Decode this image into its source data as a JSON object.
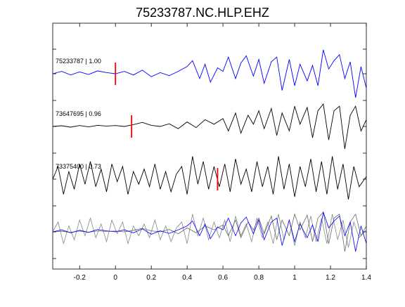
{
  "chart_data": {
    "type": "line",
    "title": "75233787.NC.HLP.EHZ",
    "xlabel": "",
    "ylabel": "",
    "xlim": [
      -0.35,
      1.4
    ],
    "x_ticks": [
      "-0.2",
      "0",
      "0.2",
      "0.4",
      "0.6",
      "0.8",
      "1",
      "1.2",
      "1.4"
    ],
    "grid": false,
    "traces": [
      {
        "label": "75233787 | 1.00",
        "color": "#0000ff",
        "pick_time": 0.0,
        "pick_color": "#ff0000",
        "points": [
          [
            -0.35,
            0.0
          ],
          [
            -0.3,
            0.1
          ],
          [
            -0.25,
            -0.05
          ],
          [
            -0.2,
            0.08
          ],
          [
            -0.15,
            -0.03
          ],
          [
            -0.1,
            0.12
          ],
          [
            -0.05,
            0.05
          ],
          [
            0.0,
            0.0
          ],
          [
            0.05,
            0.1
          ],
          [
            0.1,
            -0.05
          ],
          [
            0.15,
            0.15
          ],
          [
            0.2,
            -0.12
          ],
          [
            0.25,
            0.05
          ],
          [
            0.3,
            -0.08
          ],
          [
            0.35,
            0.1
          ],
          [
            0.4,
            0.3
          ],
          [
            0.43,
            0.55
          ],
          [
            0.47,
            -0.2
          ],
          [
            0.5,
            0.4
          ],
          [
            0.53,
            -0.35
          ],
          [
            0.57,
            0.25
          ],
          [
            0.6,
            0.1
          ],
          [
            0.63,
            0.7
          ],
          [
            0.67,
            -0.2
          ],
          [
            0.7,
            0.45
          ],
          [
            0.73,
            0.75
          ],
          [
            0.77,
            -0.1
          ],
          [
            0.8,
            0.6
          ],
          [
            0.83,
            -0.4
          ],
          [
            0.87,
            0.5
          ],
          [
            0.9,
            0.7
          ],
          [
            0.93,
            -0.7
          ],
          [
            0.97,
            0.6
          ],
          [
            1.0,
            -0.5
          ],
          [
            1.03,
            0.4
          ],
          [
            1.07,
            -0.3
          ],
          [
            1.1,
            0.35
          ],
          [
            1.13,
            -0.5
          ],
          [
            1.16,
            1.0
          ],
          [
            1.19,
            0.2
          ],
          [
            1.22,
            0.55
          ],
          [
            1.25,
            0.8
          ],
          [
            1.28,
            -0.2
          ],
          [
            1.31,
            0.5
          ],
          [
            1.34,
            -1.0
          ],
          [
            1.37,
            0.3
          ],
          [
            1.4,
            -0.6
          ]
        ]
      },
      {
        "label": "73647695 | 0.96",
        "color": "#000000",
        "pick_time": 0.09,
        "pick_color": "#ff0000",
        "points": [
          [
            -0.35,
            0.0
          ],
          [
            -0.3,
            0.03
          ],
          [
            -0.25,
            -0.03
          ],
          [
            -0.2,
            0.04
          ],
          [
            -0.15,
            -0.02
          ],
          [
            -0.1,
            0.05
          ],
          [
            -0.05,
            0.02
          ],
          [
            0.0,
            0.04
          ],
          [
            0.05,
            0.0
          ],
          [
            0.1,
            0.08
          ],
          [
            0.15,
            0.18
          ],
          [
            0.2,
            0.05
          ],
          [
            0.25,
            0.0
          ],
          [
            0.3,
            0.12
          ],
          [
            0.35,
            -0.1
          ],
          [
            0.4,
            0.2
          ],
          [
            0.45,
            -0.05
          ],
          [
            0.5,
            0.3
          ],
          [
            0.55,
            0.1
          ],
          [
            0.6,
            0.35
          ],
          [
            0.63,
            -0.2
          ],
          [
            0.67,
            0.6
          ],
          [
            0.7,
            -0.3
          ],
          [
            0.74,
            0.5
          ],
          [
            0.77,
            0.1
          ],
          [
            0.8,
            0.7
          ],
          [
            0.83,
            -0.1
          ],
          [
            0.87,
            0.8
          ],
          [
            0.9,
            -0.4
          ],
          [
            0.93,
            0.6
          ],
          [
            0.97,
            -0.2
          ],
          [
            1.0,
            0.9
          ],
          [
            1.03,
            0.1
          ],
          [
            1.07,
            0.85
          ],
          [
            1.1,
            -0.5
          ],
          [
            1.13,
            0.7
          ],
          [
            1.16,
            1.0
          ],
          [
            1.19,
            -0.6
          ],
          [
            1.22,
            0.7
          ],
          [
            1.25,
            0.9
          ],
          [
            1.28,
            -1.0
          ],
          [
            1.31,
            0.5
          ],
          [
            1.34,
            0.9
          ],
          [
            1.37,
            -0.2
          ],
          [
            1.4,
            0.3
          ]
        ]
      },
      {
        "label": "73375400 | 0.73",
        "color": "#000000",
        "pick_time": 0.57,
        "pick_color": "#ff0000",
        "points": [
          [
            -0.35,
            0.0
          ],
          [
            -0.32,
            0.5
          ],
          [
            -0.29,
            -0.6
          ],
          [
            -0.26,
            0.3
          ],
          [
            -0.23,
            -0.4
          ],
          [
            -0.2,
            0.6
          ],
          [
            -0.17,
            -0.2
          ],
          [
            -0.14,
            0.7
          ],
          [
            -0.11,
            -0.3
          ],
          [
            -0.08,
            0.4
          ],
          [
            -0.05,
            -0.5
          ],
          [
            -0.02,
            0.6
          ],
          [
            0.01,
            -0.1
          ],
          [
            0.04,
            0.5
          ],
          [
            0.07,
            -0.6
          ],
          [
            0.1,
            0.3
          ],
          [
            0.13,
            -0.2
          ],
          [
            0.16,
            0.4
          ],
          [
            0.19,
            -0.3
          ],
          [
            0.22,
            0.6
          ],
          [
            0.25,
            -0.4
          ],
          [
            0.28,
            0.3
          ],
          [
            0.31,
            -0.5
          ],
          [
            0.34,
            0.2
          ],
          [
            0.37,
            0.5
          ],
          [
            0.4,
            -0.6
          ],
          [
            0.43,
            0.9
          ],
          [
            0.46,
            -0.2
          ],
          [
            0.49,
            0.7
          ],
          [
            0.52,
            -0.4
          ],
          [
            0.55,
            0.5
          ],
          [
            0.58,
            -0.3
          ],
          [
            0.61,
            0.6
          ],
          [
            0.64,
            -0.5
          ],
          [
            0.67,
            0.8
          ],
          [
            0.7,
            -0.2
          ],
          [
            0.73,
            0.4
          ],
          [
            0.76,
            -0.5
          ],
          [
            0.79,
            0.7
          ],
          [
            0.82,
            -0.3
          ],
          [
            0.85,
            0.5
          ],
          [
            0.88,
            -0.6
          ],
          [
            0.91,
            0.9
          ],
          [
            0.94,
            -0.4
          ],
          [
            0.97,
            0.6
          ],
          [
            1.0,
            -0.7
          ],
          [
            1.03,
            0.5
          ],
          [
            1.06,
            -0.3
          ],
          [
            1.09,
            0.8
          ],
          [
            1.12,
            -0.5
          ],
          [
            1.15,
            0.7
          ],
          [
            1.18,
            -0.6
          ],
          [
            1.21,
            0.9
          ],
          [
            1.24,
            -0.4
          ],
          [
            1.27,
            0.6
          ],
          [
            1.3,
            -0.8
          ],
          [
            1.33,
            0.5
          ],
          [
            1.36,
            -0.3
          ],
          [
            1.4,
            0.1
          ]
        ]
      }
    ],
    "overlay": {
      "series": [
        {
          "color": "#0000ff",
          "source_trace": 0
        },
        {
          "color": "#666666",
          "source_trace": 1
        },
        {
          "color": "#888888",
          "source_trace": 2
        }
      ]
    }
  }
}
